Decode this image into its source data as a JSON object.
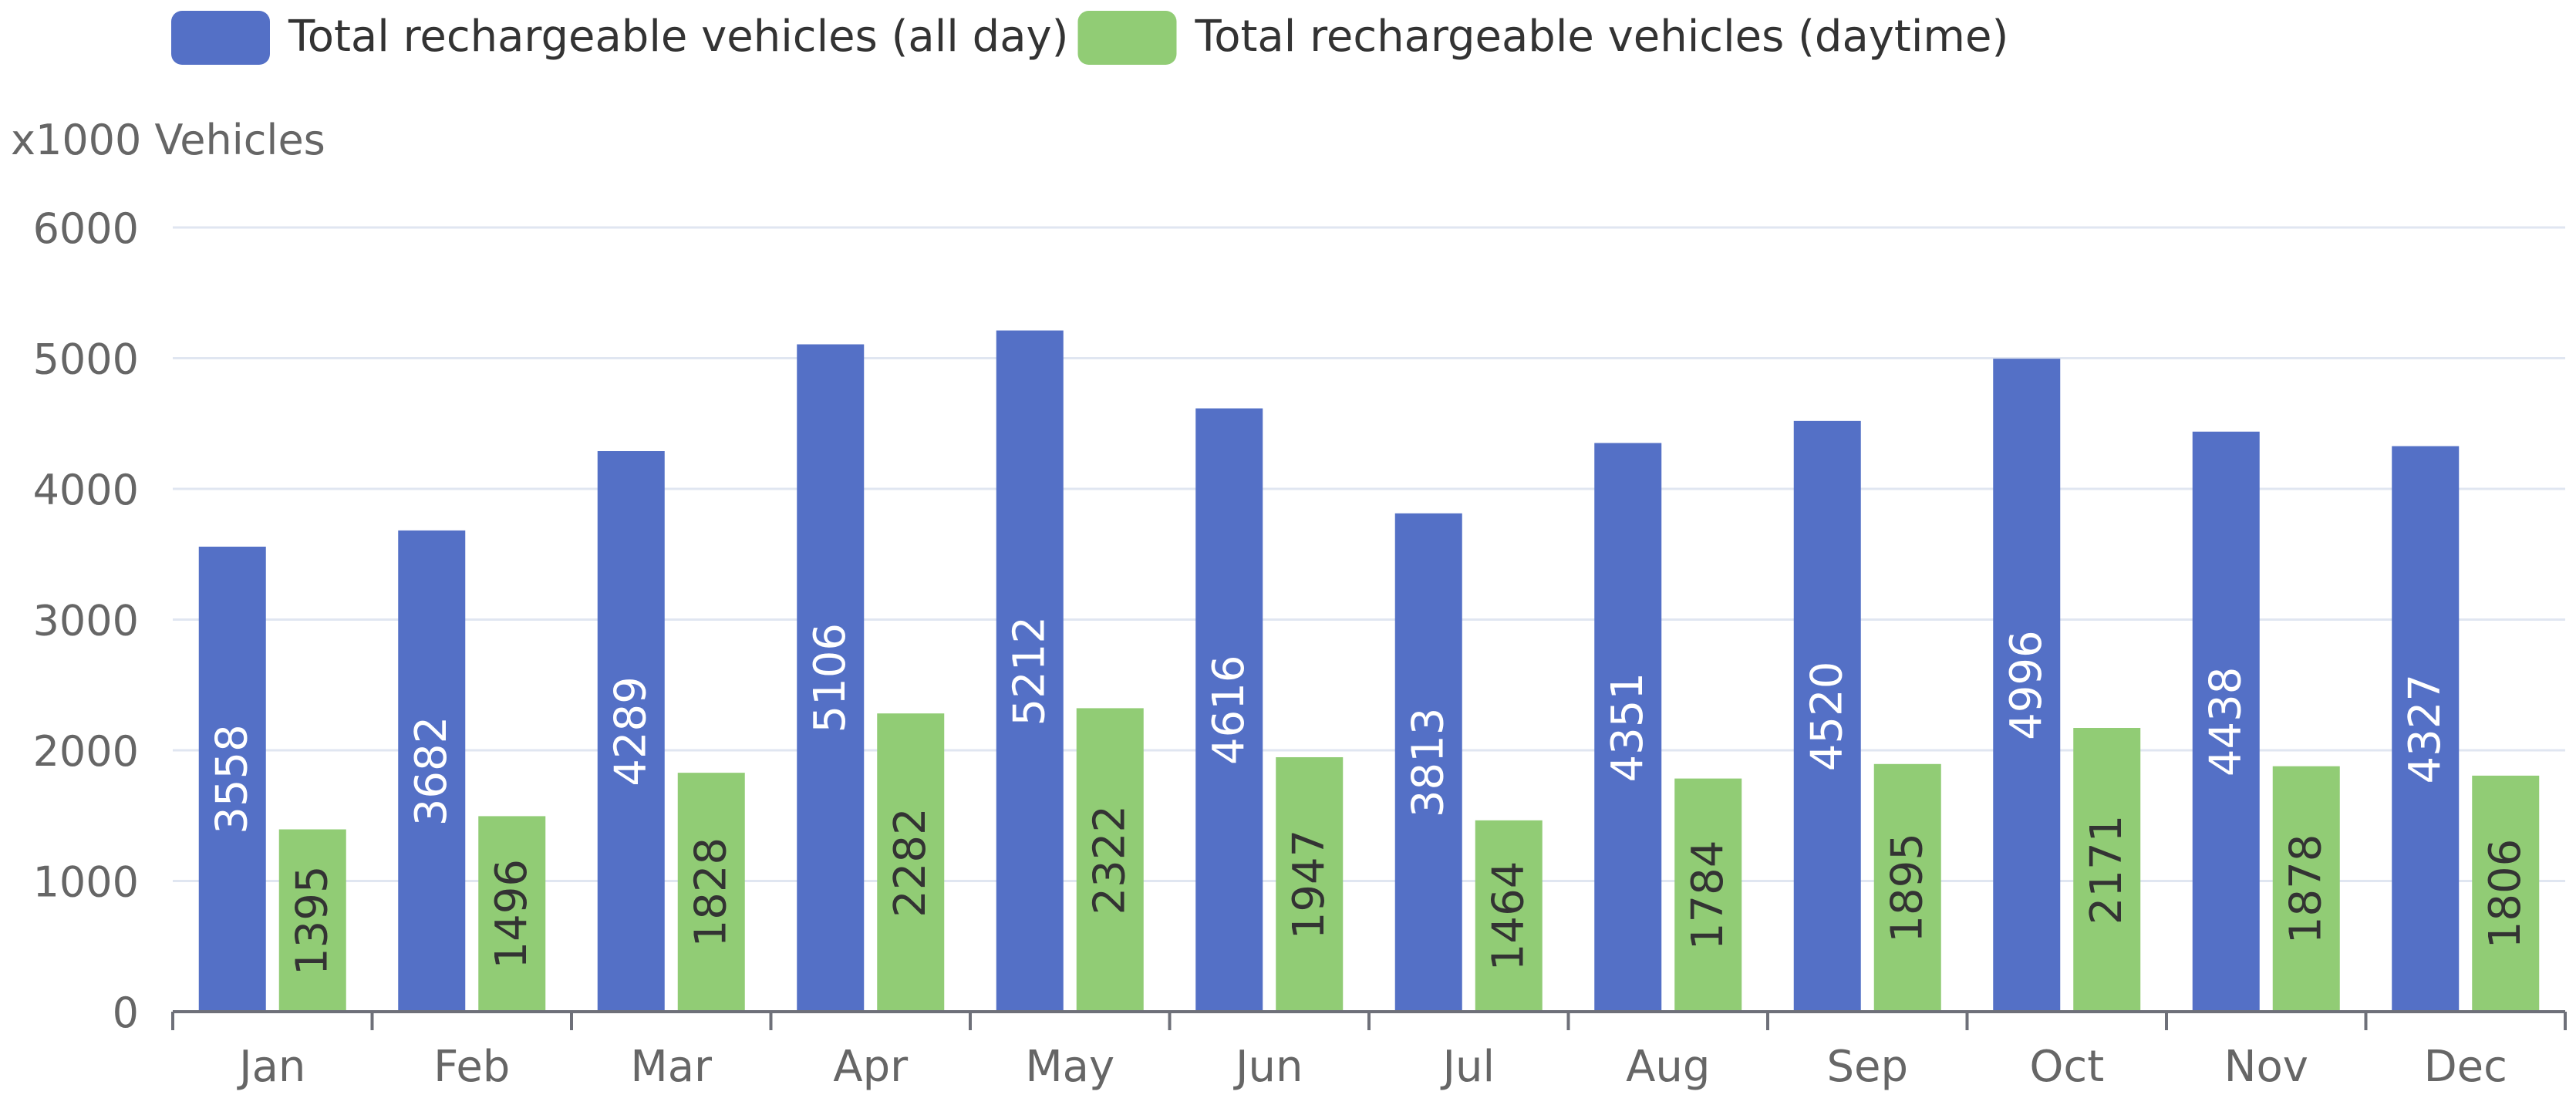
{
  "chart_data": {
    "type": "bar",
    "title": "",
    "xlabel": "",
    "ylabel": "x1000 Vehicles",
    "ylim": [
      0,
      6000
    ],
    "yticks": [
      0,
      1000,
      2000,
      3000,
      4000,
      5000,
      6000
    ],
    "ytick_labels": [
      "0",
      "1000",
      "2000",
      "3000",
      "4000",
      "5000",
      "6000"
    ],
    "grid": true,
    "legend_position": "top-left",
    "categories": [
      "Jan",
      "Feb",
      "Mar",
      "Apr",
      "May",
      "Jun",
      "Jul",
      "Aug",
      "Sep",
      "Oct",
      "Nov",
      "Dec"
    ],
    "series": [
      {
        "name": "Total rechargeable vehicles (all day)",
        "color": "#5470c6",
        "label_color": "#ffffff",
        "values": [
          3558,
          3682,
          4289,
          5106,
          5212,
          4616,
          3813,
          4351,
          4520,
          4996,
          4438,
          4327
        ]
      },
      {
        "name": "Total rechargeable vehicles (daytime)",
        "color": "#91cc75",
        "label_color": "#333333",
        "values": [
          1395,
          1496,
          1828,
          2282,
          2322,
          1947,
          1464,
          1784,
          1895,
          2171,
          1878,
          1806
        ]
      }
    ]
  }
}
